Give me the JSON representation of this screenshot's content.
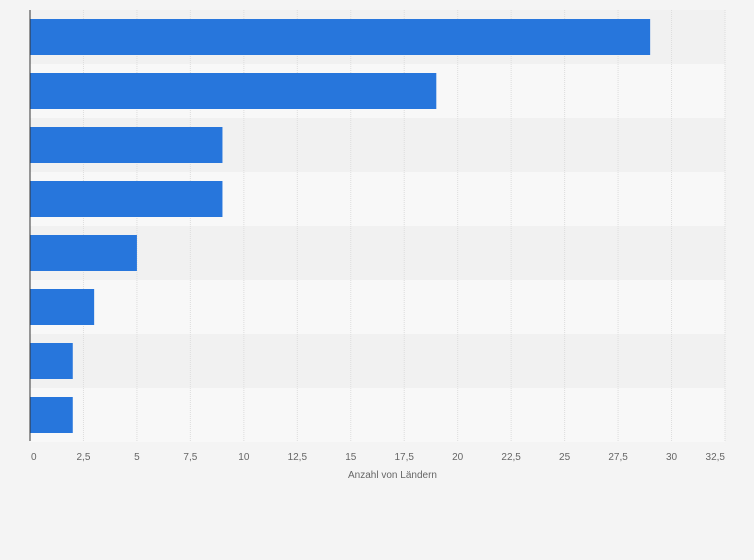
{
  "chart_data": {
    "type": "bar",
    "orientation": "horizontal",
    "categories": [
      "",
      "",
      "",
      "",
      "",
      "",
      "",
      ""
    ],
    "values": [
      29,
      19,
      9,
      9,
      5,
      3,
      2,
      2
    ],
    "xlabel": "Anzahl von Ländern",
    "xlim": [
      0,
      32.5
    ],
    "xticks": [
      0,
      2.5,
      5,
      7.5,
      10,
      12.5,
      15,
      17.5,
      20,
      22.5,
      25,
      27.5,
      30,
      32.5
    ],
    "xtick_labels": [
      "0",
      "2,5",
      "5",
      "7,5",
      "10",
      "12,5",
      "15",
      "17,5",
      "20",
      "22,5",
      "25",
      "27,5",
      "30",
      "32,5"
    ],
    "grid": true,
    "bar_color": "#2776dc",
    "band_colors": [
      "#f1f1f1",
      "#f8f8f8"
    ]
  }
}
